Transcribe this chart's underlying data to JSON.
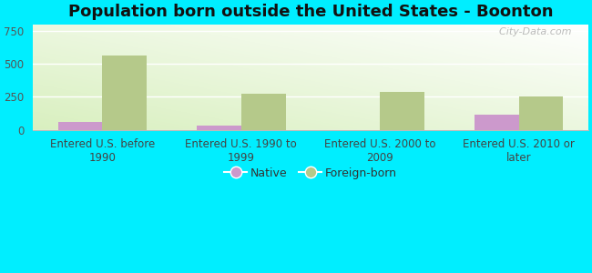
{
  "title": "Population born outside the United States - Boonton",
  "categories": [
    "Entered U.S. before\n1990",
    "Entered U.S. 1990 to\n1999",
    "Entered U.S. 2000 to\n2009",
    "Entered U.S. 2010 or\nlater"
  ],
  "native_values": [
    60,
    30,
    0,
    115
  ],
  "foreign_born_values": [
    565,
    270,
    290,
    250
  ],
  "native_color": "#cc99cc",
  "foreign_born_color": "#b5c98a",
  "outer_background": "#00eeff",
  "ylim": [
    0,
    800
  ],
  "yticks": [
    0,
    250,
    500,
    750
  ],
  "bar_width": 0.32,
  "title_fontsize": 13,
  "tick_fontsize": 8.5,
  "legend_fontsize": 9,
  "watermark_text": "  City-Data.com"
}
